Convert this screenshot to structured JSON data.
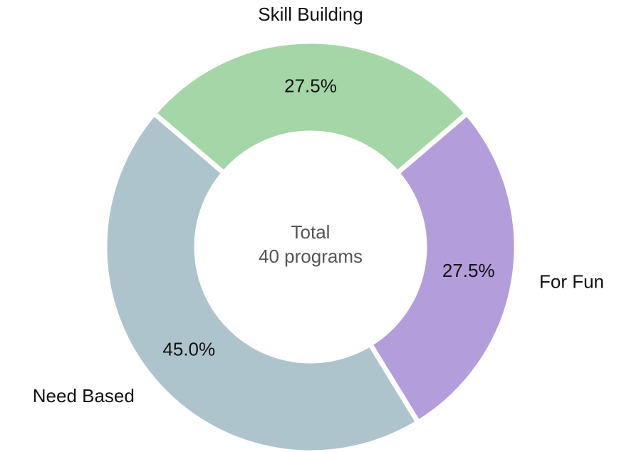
{
  "chart_data": {
    "type": "donut",
    "categories": [
      "Skill Building",
      "For Fun",
      "Need Based"
    ],
    "values": [
      27.5,
      27.5,
      45.0
    ],
    "value_labels": [
      "27.5%",
      "27.5%",
      "45.0%"
    ],
    "colors": [
      "#a5d6a7",
      "#b39ddb",
      "#aec4cd"
    ],
    "annotations": [
      "Total",
      "40 programs"
    ]
  }
}
